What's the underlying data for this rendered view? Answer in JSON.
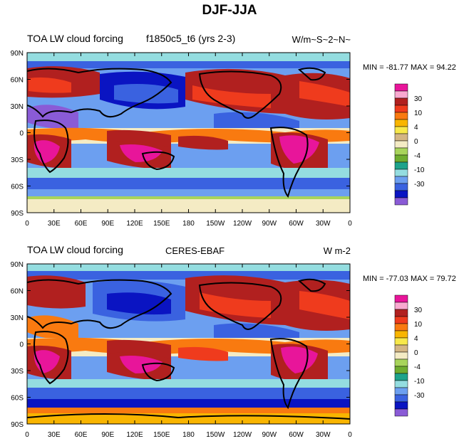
{
  "title": "DJF-JJA",
  "lon_ticks": [
    "0",
    "30E",
    "60E",
    "90E",
    "120E",
    "150E",
    "180",
    "150W",
    "120W",
    "90W",
    "60W",
    "30W",
    "0"
  ],
  "lat_ticks": [
    "90N",
    "60N",
    "30N",
    "0",
    "30S",
    "60S",
    "90S"
  ],
  "colorbar": {
    "labels": [
      "30",
      "10",
      "4",
      "0",
      "-4",
      "-10",
      "-30"
    ],
    "colors": [
      "#e8159a",
      "#f9a9d0",
      "#b1201f",
      "#ef3b1d",
      "#f97a10",
      "#f9b500",
      "#f7e84a",
      "#d3b584",
      "#f4ebc4",
      "#a8d45b",
      "#6fad2f",
      "#1ea38b",
      "#94dde0",
      "#6c9ff0",
      "#3a62e0",
      "#0a14c2",
      "#8a5bd6"
    ]
  },
  "panels": [
    {
      "left_label": "TOA LW cloud forcing",
      "center_label": "f1850c5_t6 (yrs 2-3)",
      "right_label": "W/m~S~2~N~",
      "minmax": "MIN = -81.77 MAX =  94.22"
    },
    {
      "left_label": "TOA LW cloud forcing",
      "center_label": "CERES-EBAF",
      "right_label": "W m-2",
      "minmax": "MIN = -77.03 MAX =  79.72"
    }
  ]
}
